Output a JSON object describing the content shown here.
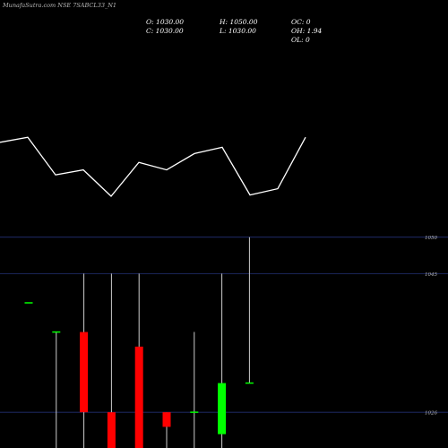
{
  "title": "MunafaSutra.com NSE 7SABCL33_N1",
  "ohlc": {
    "open": "O: 1030.00",
    "high": "H: 1050.00",
    "oc": "OC: 0",
    "close": "C: 1030.00",
    "low": "L: 1030.00",
    "oh": "OH: 1.94",
    "ol": "OL: 0"
  },
  "colors": {
    "background": "#000000",
    "bull": "#00ff00",
    "bear": "#ff0000",
    "line": "#ffffff",
    "grid": "#2a3a8a",
    "wick": "#cccccc",
    "axis_text": "#bbbbbb"
  },
  "chart_data": {
    "type": "candlestick",
    "title": "MunafaSutra.com NSE 7SABCL33_N1",
    "y_tick_labels": [
      "1050",
      "1045",
      "1026"
    ],
    "y_ticks": [
      1050,
      1045,
      1026
    ],
    "ylim": [
      1021.1,
      1052.3
    ],
    "candles": [
      {
        "open": 1041,
        "high": 1041,
        "low": 1041,
        "close": 1041
      },
      {
        "open": 1037,
        "high": 1037,
        "low": 1014,
        "close": 1037
      },
      {
        "open": 1037,
        "high": 1045,
        "low": 1018,
        "close": 1026
      },
      {
        "open": 1026,
        "high": 1045,
        "low": 1020,
        "close": 1020
      },
      {
        "open": 1035,
        "high": 1045,
        "low": 1019,
        "close": 1021
      },
      {
        "open": 1026,
        "high": 1026,
        "low": 1019,
        "close": 1024
      },
      {
        "open": 1026,
        "high": 1037,
        "low": 1018,
        "close": 1026
      },
      {
        "open": 1023,
        "high": 1045,
        "low": 1017,
        "close": 1030
      },
      {
        "open": 1030,
        "high": 1050,
        "low": 1030,
        "close": 1030
      }
    ],
    "line_series": [
      0.58,
      0.62,
      0.32,
      0.36,
      0.15,
      0.42,
      0.36,
      0.49,
      0.54,
      0.16,
      0.21,
      0.62
    ],
    "line_label": "",
    "grid": true
  }
}
